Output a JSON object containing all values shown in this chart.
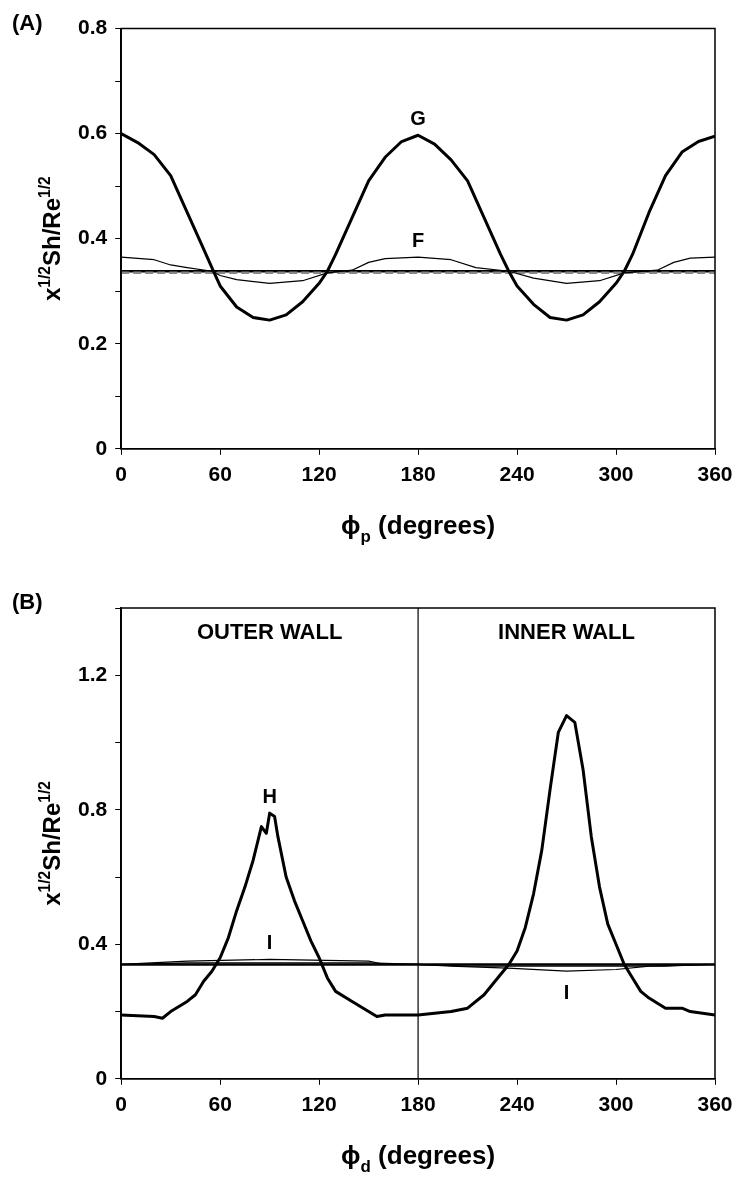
{
  "chart_data": [
    {
      "type": "line",
      "title": "(A)",
      "xlabel": "ϕ$_{p}$ (degrees)",
      "ylabel": "x$^{1/2}$Sh/Re$^{1/2}$",
      "xlim": [
        0,
        360
      ],
      "xticks": [
        0,
        60,
        120,
        180,
        240,
        300,
        360
      ],
      "ylim": [
        0,
        0.8
      ],
      "yticks": [
        0,
        {
          "value": 0.1,
          "label": null
        },
        0.2,
        {
          "value": 0.3,
          "label": null
        },
        0.4,
        {
          "value": 0.5,
          "label": null
        },
        0.6,
        {
          "value": 0.7,
          "label": null
        },
        0.8
      ],
      "grid": false,
      "legend": false,
      "series": [
        {
          "color": "#000000",
          "x": [
            0,
            10,
            20,
            30,
            40,
            50,
            56,
            60,
            70,
            80,
            90,
            100,
            110,
            120,
            125,
            130,
            140,
            150,
            160,
            170,
            180,
            190,
            200,
            210,
            220,
            230,
            235,
            240,
            250,
            260,
            270,
            280,
            290,
            300,
            305,
            310,
            320,
            330,
            340,
            350,
            360
          ],
          "values": [
            0.6,
            0.583,
            0.56,
            0.52,
            0.45,
            0.38,
            0.338,
            0.31,
            0.27,
            0.25,
            0.245,
            0.255,
            0.28,
            0.315,
            0.338,
            0.37,
            0.44,
            0.51,
            0.555,
            0.585,
            0.597,
            0.58,
            0.55,
            0.51,
            0.44,
            0.37,
            0.338,
            0.31,
            0.275,
            0.25,
            0.245,
            0.255,
            0.28,
            0.315,
            0.338,
            0.37,
            0.45,
            0.52,
            0.565,
            0.585,
            0.595
          ]
        },
        {
          "color": "#000000",
          "x": [
            0,
            20,
            30,
            40,
            55,
            60,
            70,
            90,
            110,
            125,
            140,
            150,
            160,
            180,
            200,
            215,
            235,
            250,
            270,
            290,
            305,
            325,
            335,
            345,
            360
          ],
          "values": [
            0.365,
            0.36,
            0.35,
            0.345,
            0.338,
            0.33,
            0.322,
            0.315,
            0.32,
            0.335,
            0.34,
            0.355,
            0.362,
            0.365,
            0.36,
            0.345,
            0.338,
            0.325,
            0.315,
            0.32,
            0.335,
            0.34,
            0.355,
            0.363,
            0.365
          ]
        },
        {
          "color": "#888888",
          "line_style": "dashed",
          "x": [
            0,
            360
          ],
          "values": [
            0.335,
            0.335
          ]
        },
        {
          "color": "#000000",
          "x": [
            0,
            360
          ],
          "values": [
            0.338,
            0.338
          ]
        }
      ],
      "annotations": [
        {
          "text": "G",
          "x": 180,
          "y": 0.597
        },
        {
          "text": "F",
          "x": 180,
          "y": 0.365
        }
      ]
    },
    {
      "type": "line",
      "title": "(B)",
      "xlabel": "ϕ$_{d}$ (degrees)",
      "ylabel": "x$^{1/2}$Sh/Re$^{1/2}$",
      "xlim": [
        0,
        360
      ],
      "xticks": [
        0,
        60,
        120,
        180,
        240,
        300,
        360
      ],
      "ylim": [
        0,
        1.4
      ],
      "yticks": [
        0,
        {
          "value": 0.2,
          "label": null
        },
        0.4,
        {
          "value": 0.6,
          "label": null
        },
        0.8,
        {
          "value": 1.0,
          "label": null
        },
        1.2,
        {
          "value": 1.4,
          "label": null
        }
      ],
      "grid": false,
      "legend": false,
      "series": [
        {
          "color": "#000000",
          "x": [
            0,
            20,
            25,
            30,
            40,
            45,
            50,
            55,
            60,
            65,
            70,
            75,
            80,
            85,
            88,
            90,
            93,
            95,
            100,
            105,
            110,
            115,
            120,
            125,
            130,
            140,
            150,
            155,
            160,
            180,
            200,
            210,
            220,
            230,
            235,
            240,
            245,
            250,
            255,
            260,
            265,
            270,
            275,
            280,
            285,
            290,
            295,
            300,
            305,
            310,
            315,
            320,
            330,
            340,
            345,
            360
          ],
          "values": [
            0.19,
            0.185,
            0.18,
            0.2,
            0.23,
            0.25,
            0.29,
            0.32,
            0.36,
            0.42,
            0.5,
            0.57,
            0.65,
            0.75,
            0.73,
            0.79,
            0.78,
            0.72,
            0.6,
            0.53,
            0.47,
            0.41,
            0.36,
            0.3,
            0.26,
            0.23,
            0.2,
            0.185,
            0.19,
            0.19,
            0.2,
            0.21,
            0.25,
            0.31,
            0.34,
            0.38,
            0.45,
            0.55,
            0.68,
            0.86,
            1.03,
            1.08,
            1.06,
            0.92,
            0.72,
            0.57,
            0.46,
            0.4,
            0.34,
            0.3,
            0.26,
            0.24,
            0.21,
            0.21,
            0.2,
            0.19
          ]
        },
        {
          "color": "#000000",
          "x": [
            0,
            360
          ],
          "values": [
            0.34,
            0.34
          ]
        },
        {
          "color": "#000000",
          "x": [
            0,
            40,
            90,
            150,
            160,
            180,
            200,
            230,
            270,
            300,
            320,
            360
          ],
          "values": [
            0.34,
            0.35,
            0.355,
            0.35,
            0.34,
            0.34,
            0.335,
            0.33,
            0.32,
            0.325,
            0.335,
            0.34
          ]
        },
        {
          "color": "#000000",
          "x": [
            5,
            40,
            150,
            180,
            210,
            240,
            330,
            355
          ],
          "values": [
            0.34,
            0.345,
            0.345,
            0.34,
            0.335,
            0.335,
            0.335,
            0.34
          ]
        }
      ],
      "ref_lines": [
        {
          "axis": "x",
          "value": 180,
          "color": "#000000"
        }
      ],
      "annotations": [
        "OUTER WALL",
        "INNER WALL",
        {
          "text": "H",
          "x": 90,
          "y": 0.79
        },
        {
          "text": "I",
          "x": 90,
          "y": 0.355
        },
        {
          "text": "I",
          "x": 270,
          "y": 0.32
        }
      ]
    }
  ]
}
